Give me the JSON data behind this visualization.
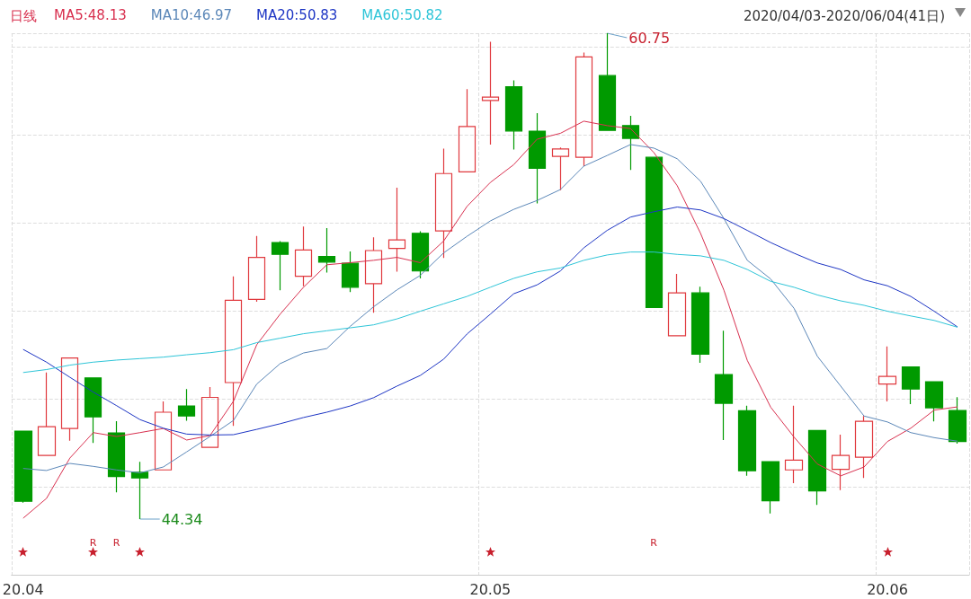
{
  "chart_data": {
    "type": "candlestick",
    "title": "日线",
    "subtitle": "2020/04/03-2020/06/04(41日)",
    "categories": [
      "20.04",
      null,
      null,
      null,
      null,
      null,
      null,
      null,
      null,
      null,
      null,
      null,
      null,
      null,
      null,
      null,
      null,
      null,
      null,
      null,
      "20.05",
      null,
      null,
      null,
      null,
      null,
      null,
      null,
      null,
      null,
      null,
      null,
      null,
      null,
      null,
      null,
      null,
      "20.06",
      null,
      null,
      null
    ],
    "ohlc": [
      [
        47.31,
        47.31,
        44.89,
        44.94
      ],
      [
        46.49,
        49.29,
        46.49,
        47.46
      ],
      [
        47.4,
        49.78,
        46.99,
        49.78
      ],
      [
        49.11,
        49.11,
        46.91,
        47.79
      ],
      [
        47.25,
        47.65,
        45.24,
        45.78
      ],
      [
        45.92,
        46.27,
        44.34,
        45.73
      ],
      [
        46.0,
        48.31,
        46.0,
        47.95
      ],
      [
        48.16,
        48.73,
        47.66,
        47.82
      ],
      [
        46.76,
        48.8,
        46.76,
        48.45
      ],
      [
        48.95,
        52.54,
        47.49,
        51.73
      ],
      [
        51.76,
        53.9,
        51.68,
        53.18
      ],
      [
        53.68,
        53.73,
        52.07,
        53.28
      ],
      [
        52.54,
        54.22,
        52.2,
        53.43
      ],
      [
        53.21,
        54.17,
        52.67,
        53.02
      ],
      [
        52.98,
        53.38,
        52.01,
        52.17
      ],
      [
        52.29,
        53.86,
        51.31,
        53.41
      ],
      [
        53.48,
        55.53,
        52.7,
        53.77
      ],
      [
        53.99,
        54.06,
        52.47,
        52.72
      ],
      [
        54.07,
        56.85,
        53.16,
        56.01
      ],
      [
        56.07,
        58.86,
        56.07,
        57.6
      ],
      [
        58.48,
        60.46,
        56.99,
        58.59
      ],
      [
        58.94,
        59.16,
        56.82,
        57.45
      ],
      [
        57.44,
        58.05,
        55.0,
        56.19
      ],
      [
        56.59,
        56.89,
        55.45,
        56.84
      ],
      [
        56.56,
        60.1,
        56.26,
        59.95
      ],
      [
        59.32,
        60.75,
        57.47,
        57.47
      ],
      [
        57.63,
        57.96,
        56.13,
        57.2
      ],
      [
        56.56,
        56.56,
        51.49,
        51.49
      ],
      [
        50.53,
        52.62,
        50.53,
        51.98
      ],
      [
        51.98,
        52.19,
        49.62,
        49.91
      ],
      [
        49.22,
        50.7,
        47.01,
        48.25
      ],
      [
        48.0,
        48.17,
        45.8,
        45.97
      ],
      [
        46.28,
        46.28,
        44.53,
        44.96
      ],
      [
        46.0,
        48.17,
        45.55,
        46.33
      ],
      [
        47.33,
        47.33,
        44.82,
        45.29
      ],
      [
        46.02,
        47.19,
        45.32,
        46.49
      ],
      [
        46.43,
        47.82,
        45.73,
        47.64
      ],
      [
        48.9,
        50.17,
        48.31,
        49.16
      ],
      [
        49.48,
        49.48,
        48.22,
        48.73
      ],
      [
        48.98,
        48.98,
        47.64,
        48.1
      ],
      [
        48.01,
        48.46,
        46.89,
        46.96
      ]
    ],
    "colors": [
      "#009a00",
      "#e0393e",
      "#e0393e",
      "#009a00",
      "#009a00",
      "#009a00",
      "#e0393e",
      "#009a00",
      "#e0393e",
      "#e0393e",
      "#e0393e",
      "#009a00",
      "#e0393e",
      "#009a00",
      "#009a00",
      "#e0393e",
      "#e0393e",
      "#009a00",
      "#e0393e",
      "#e0393e",
      "#e0393e",
      "#009a00",
      "#009a00",
      "#e0393e",
      "#e0393e",
      "#009a00",
      "#009a00",
      "#009a00",
      "#e0393e",
      "#009a00",
      "#009a00",
      "#009a00",
      "#009a00",
      "#e0393e",
      "#009a00",
      "#e0393e",
      "#e0393e",
      "#e0393e",
      "#009a00",
      "#009a00",
      "#009a00"
    ],
    "series": [
      {
        "type": "line",
        "name": "MA5:48.13",
        "color": "#d8304f",
        "values": [
          44.37,
          45.04,
          46.4,
          47.26,
          47.13,
          47.26,
          47.4,
          47.01,
          47.16,
          48.32,
          50.23,
          51.26,
          52.17,
          52.93,
          53.0,
          53.08,
          53.18,
          53.0,
          53.73,
          54.9,
          55.71,
          56.31,
          57.17,
          57.37,
          57.78,
          57.63,
          57.53,
          56.72,
          55.6,
          53.99,
          52.07,
          49.7,
          48.12,
          47.11,
          46.2,
          45.8,
          46.1,
          46.96,
          47.41,
          48.02,
          48.13
        ]
      },
      {
        "type": "line",
        "name": "MA10:46.97",
        "color": "#5b87b8",
        "values": [
          46.05,
          45.98,
          46.22,
          46.12,
          46.0,
          45.9,
          46.1,
          46.61,
          47.13,
          47.67,
          48.9,
          49.59,
          49.95,
          50.1,
          50.85,
          51.51,
          52.08,
          52.57,
          53.33,
          53.89,
          54.41,
          54.8,
          55.1,
          55.47,
          56.26,
          56.62,
          56.99,
          56.87,
          56.51,
          55.75,
          54.49,
          53.08,
          52.45,
          51.46,
          49.84,
          48.83,
          47.82,
          47.62,
          47.26,
          47.09,
          46.97
        ]
      },
      {
        "type": "line",
        "name": "MA20:50.83",
        "color": "#1d35c4",
        "values": [
          50.07,
          49.64,
          49.13,
          48.63,
          48.17,
          47.7,
          47.41,
          47.21,
          47.18,
          47.19,
          47.37,
          47.56,
          47.77,
          47.95,
          48.16,
          48.44,
          48.83,
          49.19,
          49.74,
          50.59,
          51.26,
          51.95,
          52.25,
          52.72,
          53.5,
          54.09,
          54.54,
          54.72,
          54.88,
          54.78,
          54.49,
          54.09,
          53.68,
          53.32,
          52.99,
          52.77,
          52.42,
          52.22,
          51.86,
          51.36,
          50.83
        ]
      },
      {
        "type": "line",
        "name": "MA60:50.82",
        "color": "#2ec5d8",
        "values": [
          49.29,
          49.39,
          49.54,
          49.64,
          49.71,
          49.76,
          49.81,
          49.89,
          49.96,
          50.06,
          50.3,
          50.45,
          50.6,
          50.7,
          50.8,
          50.9,
          51.1,
          51.36,
          51.61,
          51.86,
          52.17,
          52.47,
          52.69,
          52.82,
          53.08,
          53.26,
          53.36,
          53.36,
          53.28,
          53.23,
          53.08,
          52.77,
          52.37,
          52.17,
          51.91,
          51.71,
          51.56,
          51.36,
          51.2,
          51.05,
          50.82
        ]
      }
    ],
    "annotations": [
      "60.75",
      "44.34",
      "R",
      "R",
      "R"
    ],
    "relative": false,
    "grid": true,
    "legend": "top left",
    "marker": "none",
    "line_style": "solid"
  }
}
